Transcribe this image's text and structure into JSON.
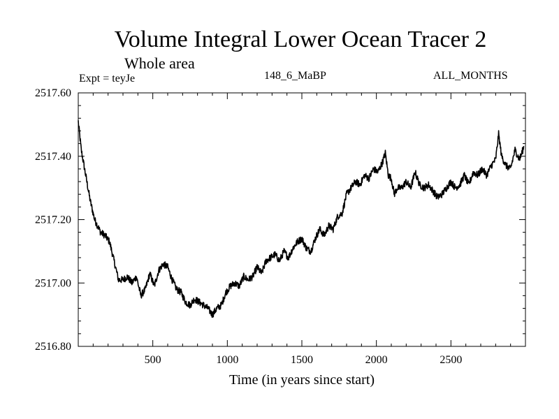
{
  "header": {
    "title": "Volume Integral Lower Ocean Tracer 2",
    "subtitle": "Whole area",
    "expt_label": "Expt = teyJe",
    "center_label": "148_6_MaBP",
    "right_label": "ALL_MONTHS"
  },
  "chart_data": {
    "type": "line",
    "title": "Volume Integral Lower Ocean Tracer 2",
    "subtitle": "Whole area",
    "xlabel": "Time (in years since start)",
    "ylabel": "",
    "xlim": [
      0,
      3000
    ],
    "ylim": [
      2516.8,
      2517.6
    ],
    "x_ticks": [
      500,
      1000,
      1500,
      2000,
      2500
    ],
    "x_tick_labels": [
      "500",
      "1000",
      "1500",
      "2000",
      "2500"
    ],
    "y_ticks": [
      2516.8,
      2517.0,
      2517.2,
      2517.4,
      2517.6
    ],
    "y_tick_labels": [
      "2516.80",
      "2517.00",
      "2517.20",
      "2517.40",
      "2517.60"
    ],
    "grid": false,
    "legend": "none",
    "series": [
      {
        "name": "Volume Integral Lower Ocean Tracer 2",
        "color": "#000000",
        "x": [
          0,
          20,
          50,
          80,
          110,
          150,
          180,
          210,
          240,
          270,
          300,
          330,
          360,
          390,
          420,
          450,
          480,
          510,
          540,
          570,
          600,
          630,
          660,
          690,
          720,
          750,
          780,
          810,
          840,
          870,
          900,
          930,
          960,
          990,
          1020,
          1050,
          1080,
          1110,
          1140,
          1170,
          1200,
          1230,
          1260,
          1290,
          1320,
          1350,
          1380,
          1410,
          1440,
          1470,
          1500,
          1530,
          1560,
          1590,
          1620,
          1650,
          1680,
          1710,
          1740,
          1770,
          1800,
          1830,
          1860,
          1890,
          1920,
          1950,
          1980,
          2010,
          2040,
          2060,
          2080,
          2100,
          2120,
          2140,
          2170,
          2200,
          2230,
          2260,
          2290,
          2320,
          2350,
          2380,
          2410,
          2440,
          2470,
          2500,
          2530,
          2560,
          2590,
          2620,
          2650,
          2680,
          2710,
          2740,
          2770,
          2800,
          2820,
          2840,
          2870,
          2900,
          2930,
          2960,
          2990
        ],
        "values": [
          2517.51,
          2517.42,
          2517.34,
          2517.26,
          2517.2,
          2517.16,
          2517.15,
          2517.13,
          2517.07,
          2517.01,
          2517.01,
          2517.02,
          2517.0,
          2517.02,
          2516.96,
          2516.98,
          2517.03,
          2516.99,
          2517.04,
          2517.06,
          2517.05,
          2517.01,
          2516.98,
          2516.97,
          2516.94,
          2516.93,
          2516.95,
          2516.94,
          2516.93,
          2516.92,
          2516.9,
          2516.92,
          2516.93,
          2516.97,
          2516.99,
          2517.0,
          2516.99,
          2517.02,
          2517.01,
          2517.02,
          2517.05,
          2517.03,
          2517.07,
          2517.08,
          2517.09,
          2517.07,
          2517.1,
          2517.08,
          2517.11,
          2517.13,
          2517.14,
          2517.11,
          2517.1,
          2517.14,
          2517.17,
          2517.15,
          2517.18,
          2517.17,
          2517.21,
          2517.22,
          2517.28,
          2517.3,
          2517.32,
          2517.31,
          2517.34,
          2517.33,
          2517.36,
          2517.35,
          2517.38,
          2517.41,
          2517.34,
          2517.33,
          2517.28,
          2517.3,
          2517.3,
          2517.32,
          2517.3,
          2517.35,
          2517.31,
          2517.3,
          2517.31,
          2517.29,
          2517.27,
          2517.28,
          2517.3,
          2517.32,
          2517.3,
          2517.31,
          2517.34,
          2517.31,
          2517.35,
          2517.34,
          2517.36,
          2517.34,
          2517.37,
          2517.39,
          2517.47,
          2517.4,
          2517.37,
          2517.36,
          2517.42,
          2517.39,
          2517.43
        ]
      }
    ]
  }
}
